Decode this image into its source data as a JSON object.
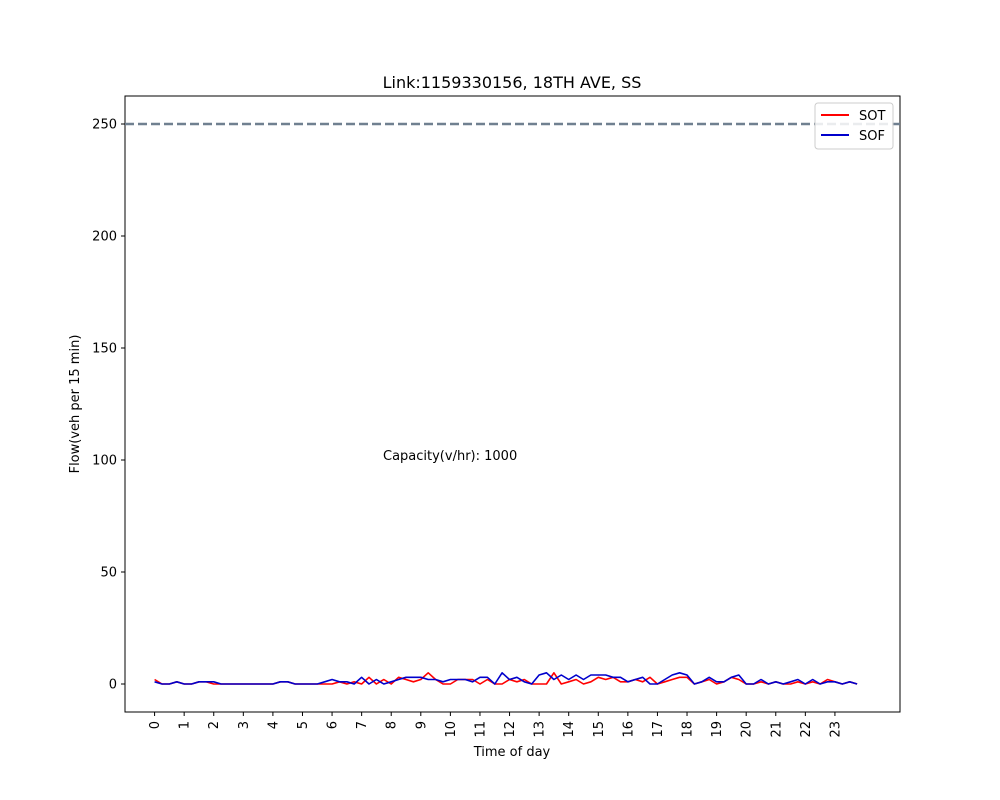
{
  "chart_data": {
    "type": "line",
    "title": "Link:1159330156, 18TH AVE, SS",
    "xlabel": "Time of day",
    "ylabel": "Flow(veh per 15 min)",
    "xlim": [
      -1,
      25.2
    ],
    "ylim": [
      -12.5,
      262.5
    ],
    "xticks": [
      "0",
      "1",
      "2",
      "3",
      "4",
      "5",
      "6",
      "7",
      "8",
      "9",
      "10",
      "11",
      "12",
      "13",
      "14",
      "15",
      "16",
      "17",
      "18",
      "19",
      "20",
      "21",
      "22",
      "23"
    ],
    "yticks": [
      0,
      50,
      100,
      150,
      200,
      250
    ],
    "annotation": {
      "text": "Capacity(v/hr): 1000",
      "x": 7.5,
      "y": 101
    },
    "reference_line": {
      "y": 250,
      "style": "dashed",
      "color": "#708090"
    },
    "legend": {
      "position": "top-right"
    },
    "series": [
      {
        "name": "SOT",
        "color": "#ff0000",
        "values": [
          2,
          0,
          0,
          1,
          0,
          0,
          1,
          1,
          0,
          0,
          0,
          0,
          0,
          0,
          0,
          0,
          0,
          1,
          1,
          0,
          0,
          0,
          0,
          0,
          0,
          1,
          0,
          1,
          0,
          3,
          0,
          2,
          0,
          3,
          2,
          1,
          2,
          5,
          2,
          0,
          0,
          2,
          2,
          2,
          0,
          2,
          0,
          0,
          2,
          1,
          2,
          0,
          0,
          0,
          5,
          0,
          1,
          2,
          0,
          1,
          3,
          2,
          3,
          1,
          1,
          2,
          1,
          3,
          0,
          1,
          2,
          3,
          3,
          0,
          1,
          2,
          0,
          1,
          3,
          2,
          0,
          0,
          1,
          0,
          1,
          0,
          0,
          1,
          0,
          1,
          0,
          2,
          1,
          0,
          1,
          0
        ]
      },
      {
        "name": "SOF",
        "color": "#0000cc",
        "values": [
          1,
          0,
          0,
          1,
          0,
          0,
          1,
          1,
          1,
          0,
          0,
          0,
          0,
          0,
          0,
          0,
          0,
          1,
          1,
          0,
          0,
          0,
          0,
          1,
          2,
          1,
          1,
          0,
          3,
          0,
          2,
          0,
          1,
          2,
          3,
          3,
          3,
          2,
          2,
          1,
          2,
          2,
          2,
          1,
          3,
          3,
          0,
          5,
          2,
          3,
          1,
          0,
          4,
          5,
          2,
          4,
          2,
          4,
          2,
          4,
          4,
          4,
          3,
          3,
          1,
          2,
          3,
          0,
          0,
          2,
          4,
          5,
          4,
          0,
          1,
          3,
          1,
          1,
          3,
          4,
          0,
          0,
          2,
          0,
          1,
          0,
          1,
          2,
          0,
          2,
          0,
          1,
          1,
          0,
          1,
          0
        ]
      }
    ]
  }
}
